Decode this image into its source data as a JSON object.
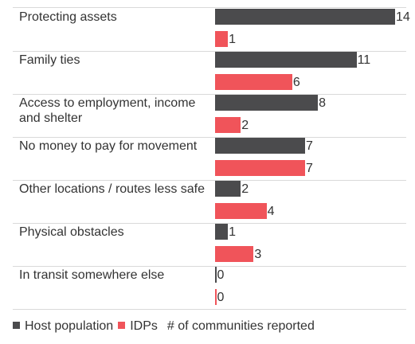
{
  "chart_data": {
    "type": "bar",
    "orientation": "horizontal",
    "categories": [
      "Protecting assets",
      "Family ties",
      "Access to employment, income and shelter",
      "No money to pay for movement",
      "Other locations / routes less safe",
      "Physical obstacles",
      "In transit somewhere else"
    ],
    "series": [
      {
        "name": "Host population",
        "color": "#4b4b4d",
        "values": [
          14,
          11,
          8,
          7,
          2,
          1,
          0
        ]
      },
      {
        "name": "IDPs",
        "color": "#f0545a",
        "values": [
          1,
          6,
          2,
          7,
          4,
          3,
          0
        ]
      }
    ],
    "note": "# of communities reported"
  }
}
